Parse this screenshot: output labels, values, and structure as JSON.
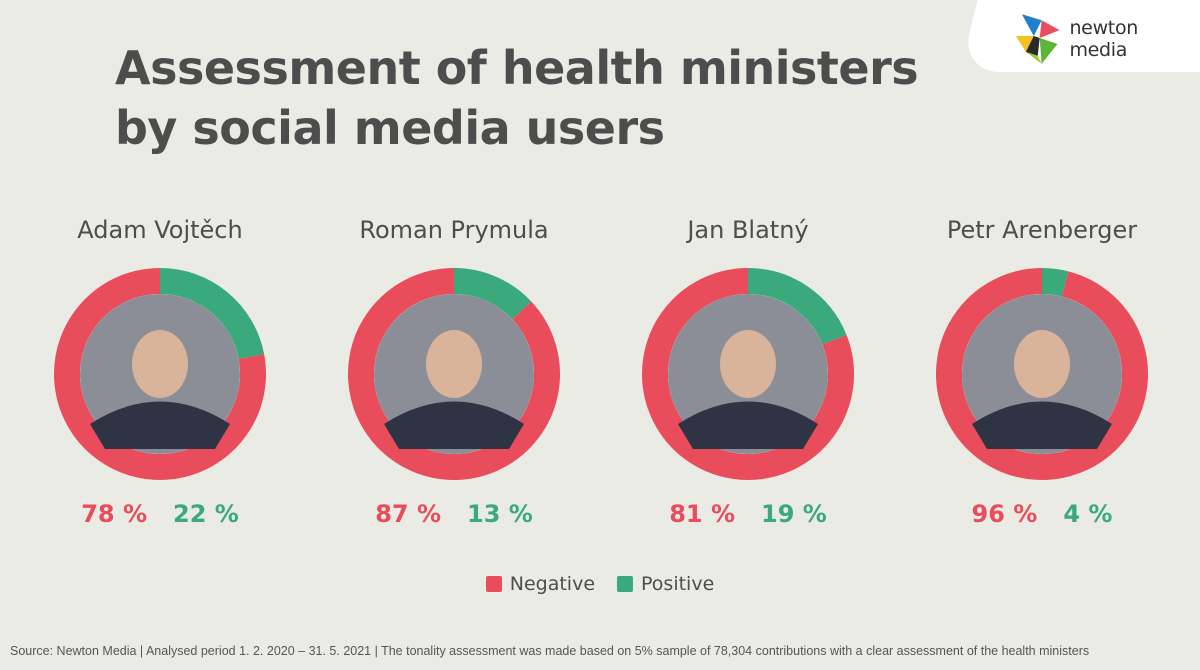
{
  "title_line1": "Assessment of health ministers",
  "title_line2": "by social media users",
  "logo_text": "newton media",
  "colors": {
    "negative": "#e94c5a",
    "positive": "#3aa97c",
    "background": "#ebebe6"
  },
  "chart_data": {
    "type": "pie",
    "title": "Assessment of health ministers by social media users",
    "categories": [
      "Adam Vojtěch",
      "Roman Prymula",
      "Jan Blatný",
      "Petr Arenberger"
    ],
    "series": [
      {
        "name": "Negative",
        "values": [
          78,
          87,
          81,
          96
        ]
      },
      {
        "name": "Positive",
        "values": [
          22,
          13,
          19,
          4
        ]
      }
    ],
    "labels": {
      "negative": [
        "78 %",
        "87 %",
        "81 %",
        "96 %"
      ],
      "positive": [
        "22 %",
        "13 %",
        "19 %",
        "4 %"
      ]
    },
    "legend": [
      "Negative",
      "Positive"
    ]
  },
  "source": "Source: Newton Media | Analysed period 1. 2. 2020 – 31. 5. 2021 | The tonality assessment was made based on 5% sample of 78,304 contributions with a clear assessment of the health ministers"
}
